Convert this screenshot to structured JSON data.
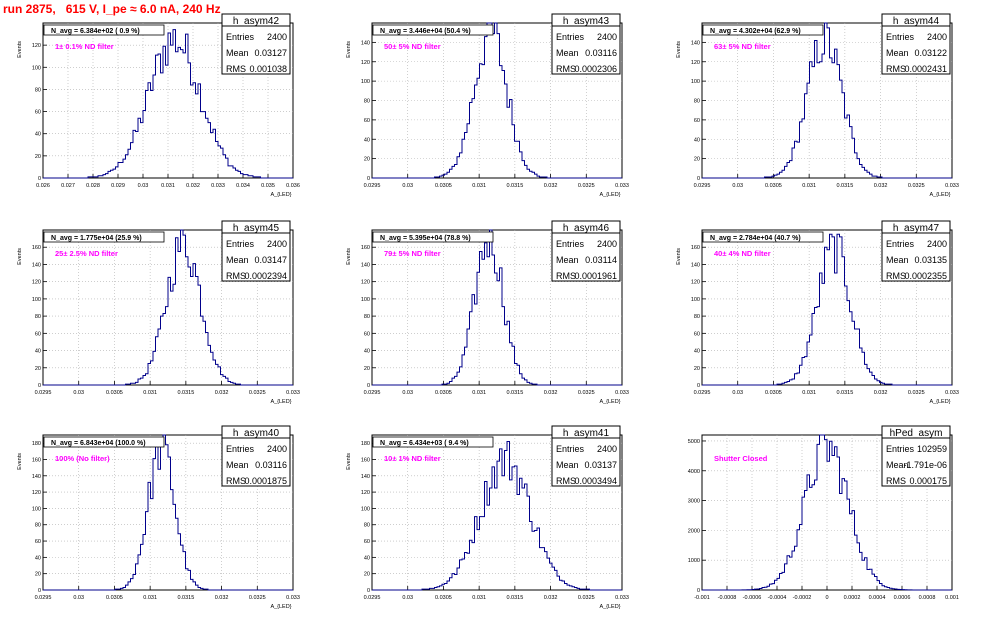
{
  "header": {
    "title": "run 2875,   615 V, I_pe ≈ 6.0 nA, 240 Hz"
  },
  "colors": {
    "title": "#ff0000",
    "annotation": "#ff00ff",
    "histogram": "#00008b",
    "grid": "#b0b0b0"
  },
  "chart_data": [
    {
      "type": "histogram",
      "id": "h_asym42",
      "title": "h_asym42",
      "ylabel": "Events",
      "xlabel": "A_{LED}",
      "xlim": [
        0.026,
        0.036
      ],
      "ylim": [
        0,
        140
      ],
      "xticks": [
        "0.026",
        "0.027",
        "0.028",
        "0.029",
        "0.03",
        "0.031",
        "0.032",
        "0.033",
        "0.034",
        "0.035",
        "0.036"
      ],
      "yticks": [
        "0",
        "20",
        "40",
        "60",
        "80",
        "100",
        "120"
      ],
      "navg": "N_avg = 6.384e+02 ( 0.9 %)",
      "annotation": "1± 0.1% ND filter",
      "stats": [
        [
          "Entries",
          "2400"
        ],
        [
          "Mean",
          "0.03127"
        ],
        [
          "RMS",
          "0.001038"
        ]
      ],
      "mean": 0.03127,
      "rms": 0.001038,
      "peak": 125,
      "entries": 2400
    },
    {
      "type": "histogram",
      "id": "h_asym43",
      "title": "h_asym43",
      "ylabel": "Events",
      "xlabel": "A_{LED}",
      "xlim": [
        0.0295,
        0.033
      ],
      "ylim": [
        0,
        160
      ],
      "xticks": [
        "0.0295",
        "0.03",
        "0.0305",
        "0.031",
        "0.0315",
        "0.032",
        "0.0325",
        "0.033"
      ],
      "yticks": [
        "0",
        "20",
        "40",
        "60",
        "80",
        "100",
        "120",
        "140"
      ],
      "navg": "N_avg = 3.446e+04 (50.4 %)",
      "annotation": "50± 5% ND filter",
      "stats": [
        [
          "Entries",
          "2400"
        ],
        [
          "Mean",
          "0.03116"
        ],
        [
          "RMS",
          "0.0002306"
        ]
      ],
      "mean": 0.03116,
      "rms": 0.0002306,
      "peak": 150,
      "entries": 2400
    },
    {
      "type": "histogram",
      "id": "h_asym44",
      "title": "h_asym44",
      "ylabel": "Events",
      "xlabel": "A_{LED}",
      "xlim": [
        0.0295,
        0.033
      ],
      "ylim": [
        0,
        160
      ],
      "xticks": [
        "0.0295",
        "0.03",
        "0.0305",
        "0.031",
        "0.0315",
        "0.032",
        "0.0325",
        "0.033"
      ],
      "yticks": [
        "0",
        "20",
        "40",
        "60",
        "80",
        "100",
        "120",
        "140"
      ],
      "navg": "N_avg = 4.302e+04 (62.9 %)",
      "annotation": "63± 5% ND filter",
      "stats": [
        [
          "Entries",
          "2400"
        ],
        [
          "Mean",
          "0.03122"
        ],
        [
          "RMS",
          "0.0002431"
        ]
      ],
      "mean": 0.03122,
      "rms": 0.0002431,
      "peak": 143,
      "entries": 2400
    },
    {
      "type": "histogram",
      "id": "h_asym45",
      "title": "h_asym45",
      "ylabel": "Events",
      "xlabel": "A_{LED}",
      "xlim": [
        0.0295,
        0.033
      ],
      "ylim": [
        0,
        180
      ],
      "xticks": [
        "0.0295",
        "0.03",
        "0.0305",
        "0.031",
        "0.0315",
        "0.032",
        "0.0325",
        "0.033"
      ],
      "yticks": [
        "0",
        "20",
        "40",
        "60",
        "80",
        "100",
        "120",
        "140",
        "160"
      ],
      "navg": "N_avg = 1.775e+04 (25.9 %)",
      "annotation": "25± 2.5% ND filter",
      "stats": [
        [
          "Entries",
          "2400"
        ],
        [
          "Mean",
          "0.03147"
        ],
        [
          "RMS",
          "0.0002394"
        ]
      ],
      "mean": 0.03147,
      "rms": 0.0002394,
      "peak": 165,
      "entries": 2400
    },
    {
      "type": "histogram",
      "id": "h_asym46",
      "title": "h_asym46",
      "ylabel": "Events",
      "xlabel": "A_{LED}",
      "xlim": [
        0.0295,
        0.033
      ],
      "ylim": [
        0,
        180
      ],
      "xticks": [
        "0.0295",
        "0.03",
        "0.0305",
        "0.031",
        "0.0315",
        "0.032",
        "0.0325",
        "0.033"
      ],
      "yticks": [
        "0",
        "20",
        "40",
        "60",
        "80",
        "100",
        "120",
        "140",
        "160"
      ],
      "navg": "N_avg = 5.395e+04 (78.8 %)",
      "annotation": "79± 5% ND filter",
      "stats": [
        [
          "Entries",
          "2400"
        ],
        [
          "Mean",
          "0.03114"
        ],
        [
          "RMS",
          "0.0001961"
        ]
      ],
      "mean": 0.03114,
      "rms": 0.0001961,
      "peak": 172,
      "entries": 2400
    },
    {
      "type": "histogram",
      "id": "h_asym47",
      "title": "h_asym47",
      "ylabel": "Events",
      "xlabel": "A_{LED}",
      "xlim": [
        0.0295,
        0.033
      ],
      "ylim": [
        0,
        180
      ],
      "xticks": [
        "0.0295",
        "0.03",
        "0.0305",
        "0.031",
        "0.0315",
        "0.032",
        "0.0325",
        "0.033"
      ],
      "yticks": [
        "0",
        "20",
        "40",
        "60",
        "80",
        "100",
        "120",
        "140",
        "160"
      ],
      "navg": "N_avg = 2.784e+04 (40.7 %)",
      "annotation": "40± 4% ND filter",
      "stats": [
        [
          "Entries",
          "2400"
        ],
        [
          "Mean",
          "0.03135"
        ],
        [
          "RMS",
          "0.0002355"
        ]
      ],
      "mean": 0.03135,
      "rms": 0.0002355,
      "peak": 158,
      "entries": 2400
    },
    {
      "type": "histogram",
      "id": "h_asym40",
      "title": "h_asym40",
      "ylabel": "Events",
      "xlabel": "A_{LED}",
      "xlim": [
        0.0295,
        0.033
      ],
      "ylim": [
        0,
        190
      ],
      "xticks": [
        "0.0295",
        "0.03",
        "0.0305",
        "0.031",
        "0.0315",
        "0.032",
        "0.0325",
        "0.033"
      ],
      "yticks": [
        "0",
        "20",
        "40",
        "60",
        "80",
        "100",
        "120",
        "140",
        "160",
        "180"
      ],
      "navg": "N_avg = 6.843e+04 (100.0 %)",
      "annotation": "100% (No filter)",
      "stats": [
        [
          "Entries",
          "2400"
        ],
        [
          "Mean",
          "0.03116"
        ],
        [
          "RMS",
          "0.0001875"
        ]
      ],
      "mean": 0.03116,
      "rms": 0.0001875,
      "peak": 175,
      "entries": 2400
    },
    {
      "type": "histogram",
      "id": "h_asym41",
      "title": "h_asym41",
      "ylabel": "Events",
      "xlabel": "A_{LED}",
      "xlim": [
        0.0295,
        0.033
      ],
      "ylim": [
        0,
        190
      ],
      "xticks": [
        "0.0295",
        "0.03",
        "0.0305",
        "0.031",
        "0.0315",
        "0.032",
        "0.0325",
        "0.033"
      ],
      "yticks": [
        "0",
        "20",
        "40",
        "60",
        "80",
        "100",
        "120",
        "140",
        "160",
        "180"
      ],
      "navg": "N_avg = 6.434e+03 ( 9.4 %)",
      "annotation": "10± 1% ND filter",
      "stats": [
        [
          "Entries",
          "2400"
        ],
        [
          "Mean",
          "0.03137"
        ],
        [
          "RMS",
          "0.0003494"
        ]
      ],
      "mean": 0.03137,
      "rms": 0.0003494,
      "peak": 160,
      "entries": 2400
    },
    {
      "type": "histogram",
      "id": "hPed_asym",
      "title": "hPed_asym",
      "ylabel": "",
      "xlabel": "",
      "xlim": [
        -0.001,
        0.001
      ],
      "ylim": [
        0,
        5200
      ],
      "xticks": [
        "-0.001",
        "-0.0008",
        "-0.0006",
        "-0.0004",
        "-0.0002",
        "0",
        "0.0002",
        "0.0004",
        "0.0006",
        "0.0008",
        "0.001"
      ],
      "yticks": [
        "0",
        "1000",
        "2000",
        "3000",
        "4000",
        "5000"
      ],
      "navg": "",
      "annotation": "Shutter Closed",
      "stats": [
        [
          "Entries",
          "102959"
        ],
        [
          "Mean",
          "-1.791e-06"
        ],
        [
          "RMS",
          "0.000175"
        ]
      ],
      "mean": -1.791e-06,
      "rms": 0.000175,
      "peak": 4800,
      "entries": 102959
    }
  ]
}
